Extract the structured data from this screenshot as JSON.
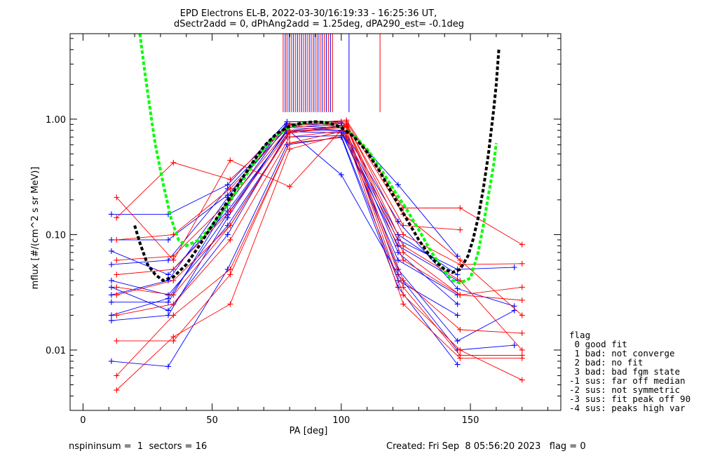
{
  "chart_data": {
    "type": "line",
    "title": [
      "EPD Electrons EL-B, 2022-03-30/16:19:33 - 16:25:36 UT,",
      "dSectr2add = 0, dPhAng2add = 1.25deg, dPA290_est=  -0.1deg"
    ],
    "xlabel": "PA [deg]",
    "ylabel": "mflux [#/(cm^2 s sr MeV)]",
    "xlim": [
      -5,
      185
    ],
    "ylim": [
      0.003,
      5.5
    ],
    "yscale": "log",
    "x_ticks": [
      0,
      50,
      100,
      150
    ],
    "y_ticks": [
      {
        "value": 0.01,
        "label": "0.01"
      },
      {
        "value": 0.1,
        "label": "0.10"
      },
      {
        "value": 1.0,
        "label": "1.00"
      }
    ],
    "series": [
      {
        "color": "#0000ff",
        "points": [
          [
            11,
            0.03
          ],
          [
            33,
            0.04
          ],
          [
            56,
            0.21
          ],
          [
            79,
            0.92
          ],
          [
            100,
            0.87
          ],
          [
            122,
            0.13
          ],
          [
            145,
            0.034
          ],
          [
            167,
            0.024
          ]
        ]
      },
      {
        "color": "#0000ff",
        "points": [
          [
            11,
            0.055
          ],
          [
            33,
            0.06
          ],
          [
            56,
            0.25
          ],
          [
            79,
            0.88
          ],
          [
            100,
            0.84
          ],
          [
            122,
            0.1
          ],
          [
            145,
            0.045
          ]
        ]
      },
      {
        "color": "#0000ff",
        "points": [
          [
            11,
            0.02
          ],
          [
            33,
            0.028
          ],
          [
            56,
            0.15
          ],
          [
            79,
            0.8
          ],
          [
            100,
            0.8
          ],
          [
            122,
            0.06
          ],
          [
            145,
            0.03
          ]
        ]
      },
      {
        "color": "#0000ff",
        "points": [
          [
            11,
            0.15
          ],
          [
            33,
            0.15
          ],
          [
            56,
            0.27
          ],
          [
            79,
            0.95
          ],
          [
            100,
            0.95
          ],
          [
            122,
            0.27
          ],
          [
            145,
            0.065
          ]
        ]
      },
      {
        "color": "#0000ff",
        "points": [
          [
            11,
            0.04
          ],
          [
            33,
            0.03
          ],
          [
            56,
            0.12
          ],
          [
            79,
            0.7
          ],
          [
            100,
            0.72
          ],
          [
            122,
            0.04
          ],
          [
            145,
            0.02
          ]
        ]
      },
      {
        "color": "#0000ff",
        "points": [
          [
            11,
            0.008
          ],
          [
            33,
            0.0072
          ],
          [
            56,
            0.05
          ],
          [
            79,
            0.6
          ],
          [
            100,
            0.7
          ],
          [
            122,
            0.035
          ],
          [
            145,
            0.0075
          ]
        ]
      },
      {
        "color": "#0000ff",
        "points": [
          [
            11,
            0.09
          ],
          [
            33,
            0.09
          ],
          [
            56,
            0.22
          ],
          [
            79,
            0.85
          ],
          [
            100,
            0.8
          ],
          [
            122,
            0.09
          ],
          [
            145,
            0.05
          ],
          [
            167,
            0.052
          ]
        ]
      },
      {
        "color": "#0000ff",
        "points": [
          [
            11,
            0.035
          ],
          [
            33,
            0.022
          ],
          [
            56,
            0.1
          ],
          [
            79,
            0.75
          ],
          [
            100,
            0.88
          ],
          [
            122,
            0.05
          ],
          [
            145,
            0.012
          ],
          [
            167,
            0.022
          ]
        ]
      },
      {
        "color": "#0000ff",
        "points": [
          [
            11,
            0.026
          ],
          [
            33,
            0.026
          ],
          [
            56,
            0.18
          ],
          [
            79,
            0.9
          ],
          [
            100,
            0.92
          ],
          [
            122,
            0.07
          ],
          [
            145,
            0.025
          ]
        ]
      },
      {
        "color": "#0000ff",
        "points": [
          [
            11,
            0.072
          ],
          [
            33,
            0.045
          ],
          [
            56,
            0.16
          ],
          [
            79,
            0.78
          ],
          [
            100,
            0.76
          ],
          [
            122,
            0.08
          ],
          [
            145,
            0.04
          ]
        ]
      },
      {
        "color": "#0000ff",
        "points": [
          [
            11,
            0.018
          ],
          [
            33,
            0.02
          ],
          [
            56,
            0.14
          ],
          [
            79,
            0.82
          ],
          [
            100,
            0.33
          ],
          [
            122,
            0.045
          ],
          [
            145,
            0.01
          ],
          [
            167,
            0.011
          ]
        ]
      },
      {
        "color": "#ff0000",
        "points": [
          [
            13,
            0.21
          ],
          [
            35,
            0.06
          ],
          [
            57,
            0.44
          ],
          [
            80,
            0.26
          ],
          [
            102,
            0.9
          ],
          [
            124,
            0.12
          ],
          [
            146,
            0.11
          ]
        ]
      },
      {
        "color": "#ff0000",
        "points": [
          [
            13,
            0.14
          ],
          [
            35,
            0.42
          ],
          [
            57,
            0.3
          ],
          [
            80,
            0.9
          ],
          [
            102,
            0.98
          ],
          [
            124,
            0.17
          ],
          [
            146,
            0.17
          ],
          [
            170,
            0.082
          ]
        ]
      },
      {
        "color": "#ff0000",
        "points": [
          [
            13,
            0.03
          ],
          [
            35,
            0.04
          ],
          [
            57,
            0.12
          ],
          [
            80,
            0.78
          ],
          [
            102,
            0.85
          ],
          [
            124,
            0.06
          ],
          [
            146,
            0.03
          ],
          [
            170,
            0.027
          ]
        ]
      },
      {
        "color": "#ff0000",
        "points": [
          [
            13,
            0.0045
          ],
          [
            35,
            0.013
          ],
          [
            57,
            0.025
          ],
          [
            80,
            0.55
          ],
          [
            102,
            0.75
          ],
          [
            124,
            0.03
          ],
          [
            146,
            0.01
          ],
          [
            170,
            0.0055
          ]
        ]
      },
      {
        "color": "#ff0000",
        "points": [
          [
            13,
            0.06
          ],
          [
            35,
            0.065
          ],
          [
            57,
            0.2
          ],
          [
            80,
            0.85
          ],
          [
            102,
            0.92
          ],
          [
            124,
            0.1
          ],
          [
            146,
            0.055
          ],
          [
            170,
            0.056
          ]
        ]
      },
      {
        "color": "#ff0000",
        "points": [
          [
            13,
            0.012
          ],
          [
            35,
            0.012
          ],
          [
            57,
            0.045
          ],
          [
            80,
            0.62
          ],
          [
            102,
            0.7
          ],
          [
            124,
            0.025
          ],
          [
            146,
            0.0085
          ],
          [
            170,
            0.0085
          ]
        ]
      },
      {
        "color": "#ff0000",
        "points": [
          [
            13,
            0.02
          ],
          [
            35,
            0.025
          ],
          [
            57,
            0.09
          ],
          [
            80,
            0.7
          ],
          [
            102,
            0.8
          ],
          [
            124,
            0.04
          ],
          [
            146,
            0.015
          ],
          [
            170,
            0.014
          ]
        ]
      },
      {
        "color": "#ff0000",
        "points": [
          [
            13,
            0.09
          ],
          [
            35,
            0.1
          ],
          [
            57,
            0.25
          ],
          [
            80,
            0.88
          ],
          [
            102,
            0.95
          ],
          [
            124,
            0.15
          ],
          [
            146,
            0.06
          ],
          [
            170,
            0.02
          ]
        ]
      },
      {
        "color": "#ff0000",
        "points": [
          [
            13,
            0.045
          ],
          [
            35,
            0.05
          ],
          [
            57,
            0.16
          ],
          [
            80,
            0.8
          ],
          [
            102,
            0.88
          ],
          [
            124,
            0.08
          ],
          [
            146,
            0.04
          ],
          [
            170,
            0.01
          ]
        ]
      },
      {
        "color": "#ff0000",
        "points": [
          [
            13,
            0.006
          ],
          [
            35,
            0.02
          ],
          [
            57,
            0.05
          ],
          [
            80,
            0.62
          ],
          [
            102,
            0.8
          ],
          [
            124,
            0.035
          ],
          [
            146,
            0.009
          ],
          [
            170,
            0.009
          ]
        ]
      },
      {
        "color": "#ff0000",
        "points": [
          [
            13,
            0.035
          ],
          [
            35,
            0.03
          ],
          [
            57,
            0.12
          ],
          [
            80,
            0.76
          ],
          [
            102,
            0.86
          ],
          [
            124,
            0.07
          ],
          [
            146,
            0.03
          ],
          [
            170,
            0.035
          ]
        ]
      }
    ],
    "peak_lines": {
      "color_alternating": [
        "#ff0000",
        "#0000ff"
      ],
      "x": [
        77.5,
        78.3,
        79.0,
        79.8,
        80.6,
        81.4,
        82.2,
        83.0,
        83.8,
        84.6,
        85.4,
        86.2,
        87.0,
        87.8,
        88.6,
        89.4,
        90.2,
        91.0,
        91.8,
        92.6,
        93.4,
        94.2,
        95.0,
        95.8,
        96.6,
        103.0,
        115.0
      ],
      "top": 5.5,
      "bottom": [
        1.15,
        1.15,
        1.15,
        1.15,
        1.15,
        1.15,
        1.15,
        1.15,
        1.15,
        1.15,
        1.15,
        1.15,
        1.15,
        1.15,
        1.15,
        1.15,
        1.15,
        1.15,
        1.15,
        1.15,
        1.15,
        1.15,
        1.15,
        1.15,
        1.15,
        1.15,
        1.15
      ]
    },
    "fits": [
      {
        "color": "#00ff00",
        "points": [
          [
            22,
            5.5
          ],
          [
            24,
            2.5
          ],
          [
            26,
            1.2
          ],
          [
            28,
            0.6
          ],
          [
            31,
            0.28
          ],
          [
            34,
            0.14
          ],
          [
            37,
            0.09
          ],
          [
            40,
            0.08
          ],
          [
            45,
            0.09
          ],
          [
            50,
            0.12
          ],
          [
            55,
            0.17
          ],
          [
            60,
            0.25
          ],
          [
            65,
            0.38
          ],
          [
            70,
            0.55
          ],
          [
            75,
            0.72
          ],
          [
            80,
            0.85
          ],
          [
            85,
            0.92
          ],
          [
            90,
            0.95
          ],
          [
            95,
            0.92
          ],
          [
            100,
            0.85
          ],
          [
            105,
            0.72
          ],
          [
            110,
            0.55
          ],
          [
            115,
            0.38
          ],
          [
            120,
            0.25
          ],
          [
            125,
            0.17
          ],
          [
            130,
            0.11
          ],
          [
            135,
            0.07
          ],
          [
            140,
            0.048
          ],
          [
            143,
            0.04
          ],
          [
            146,
            0.038
          ],
          [
            150,
            0.042
          ],
          [
            153,
            0.07
          ],
          [
            155,
            0.12
          ],
          [
            157,
            0.22
          ],
          [
            159,
            0.4
          ],
          [
            160,
            0.62
          ]
        ]
      },
      {
        "color": "#000000",
        "points": [
          [
            20,
            0.12
          ],
          [
            22,
            0.085
          ],
          [
            25,
            0.055
          ],
          [
            28,
            0.045
          ],
          [
            31,
            0.04
          ],
          [
            35,
            0.043
          ],
          [
            40,
            0.055
          ],
          [
            45,
            0.08
          ],
          [
            50,
            0.12
          ],
          [
            55,
            0.18
          ],
          [
            60,
            0.27
          ],
          [
            65,
            0.4
          ],
          [
            70,
            0.58
          ],
          [
            75,
            0.75
          ],
          [
            80,
            0.87
          ],
          [
            85,
            0.93
          ],
          [
            90,
            0.95
          ],
          [
            95,
            0.93
          ],
          [
            100,
            0.85
          ],
          [
            105,
            0.7
          ],
          [
            110,
            0.52
          ],
          [
            115,
            0.35
          ],
          [
            120,
            0.22
          ],
          [
            125,
            0.14
          ],
          [
            130,
            0.09
          ],
          [
            135,
            0.062
          ],
          [
            140,
            0.05
          ],
          [
            143,
            0.047
          ],
          [
            146,
            0.05
          ],
          [
            149,
            0.065
          ],
          [
            151,
            0.09
          ],
          [
            153,
            0.14
          ],
          [
            155,
            0.25
          ],
          [
            157,
            0.5
          ],
          [
            159,
            1.2
          ],
          [
            160,
            2.0
          ],
          [
            161,
            4.0
          ]
        ]
      }
    ],
    "legend": {
      "title": "flag",
      "entries": [
        " 0 good fit",
        " 1 bad: not converge",
        " 2 bad: no fit",
        " 3 bad: bad fgm state",
        "-1 sus: far off median",
        "-2 sus: not symmetric",
        "-3 sus: fit peak off 90",
        "-4 sus: peaks high var"
      ],
      "placement": "right"
    },
    "footer": {
      "left": "nspininsum =  1  sectors = 16",
      "right": "Created: Fri Sep  8 05:56:20 2023   flag = 0"
    }
  }
}
